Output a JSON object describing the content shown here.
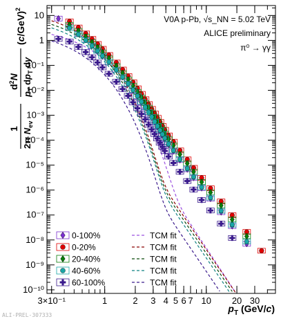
{
  "chart_data": {
    "type": "scatter",
    "x_scale": "log",
    "y_scale": "log",
    "xlim": [
      0.27,
      48
    ],
    "ylim": [
      7.2e-11,
      25
    ],
    "x_ticks": [
      {
        "v": 0.3,
        "label": "3×10⁻¹"
      },
      {
        "v": 1,
        "label": "1"
      },
      {
        "v": 2,
        "label": "2"
      },
      {
        "v": 3,
        "label": "3"
      },
      {
        "v": 4,
        "label": "4"
      },
      {
        "v": 5,
        "label": "5"
      },
      {
        "v": 6,
        "label": "6"
      },
      {
        "v": 7,
        "label": "7"
      },
      {
        "v": 10,
        "label": "10"
      },
      {
        "v": 20,
        "label": "20"
      },
      {
        "v": 30,
        "label": "30"
      }
    ],
    "y_ticks": [
      {
        "v": 10,
        "label": "10"
      },
      {
        "v": 1,
        "label": "1"
      },
      {
        "v": 0.1,
        "label": "10⁻¹"
      },
      {
        "v": 0.01,
        "label": "10⁻²"
      },
      {
        "v": 0.001,
        "label": "10⁻³"
      },
      {
        "v": 0.0001,
        "label": "10⁻⁴"
      },
      {
        "v": 1e-05,
        "label": "10⁻⁵"
      },
      {
        "v": 1e-06,
        "label": "10⁻⁶"
      },
      {
        "v": 1e-07,
        "label": "10⁻⁷"
      },
      {
        "v": 1e-08,
        "label": "10⁻⁸"
      },
      {
        "v": 1e-09,
        "label": "10⁻⁹"
      },
      {
        "v": 1e-10,
        "label": "10⁻¹⁰"
      }
    ],
    "xlabel": "p_T (GeV/c)",
    "ylabel": "1/(2π N_ev) d²N/(p_T dp_T dy) (c/GeV)²",
    "annotations": [
      "V0A p-Pb, √s_NN = 5.02 TeV",
      "ALICE preliminary",
      "π⁰ → γγ"
    ],
    "watermark": "ALI-PREL-307333",
    "legend_position": "bottom-left",
    "series": [
      {
        "name": "0-100%",
        "marker": "diamond",
        "color": "#7b2fd0",
        "points": [
          [
            0.35,
            7.5
          ],
          [
            0.45,
            3.6
          ],
          [
            0.55,
            1.85
          ],
          [
            0.65,
            1.05
          ],
          [
            0.75,
            0.62
          ],
          [
            0.85,
            0.38
          ],
          [
            0.95,
            0.24
          ],
          [
            1.1,
            0.135
          ],
          [
            1.3,
            0.067
          ],
          [
            1.5,
            0.034
          ],
          [
            1.7,
            0.018
          ],
          [
            1.9,
            0.0098
          ],
          [
            2.1,
            0.0056
          ],
          [
            2.3,
            0.0033
          ],
          [
            2.5,
            0.002
          ],
          [
            2.7,
            0.00125
          ],
          [
            2.9,
            0.0008
          ],
          [
            3.1,
            0.00052
          ],
          [
            3.3,
            0.00034
          ],
          [
            3.5,
            0.00023
          ],
          [
            3.7,
            0.000158
          ],
          [
            3.9,
            0.00011
          ],
          [
            4.25,
            6.5e-05
          ],
          [
            4.75,
            3.6e-05
          ],
          [
            5.5,
            1.6e-05
          ],
          [
            6.5,
            6.8e-06
          ],
          [
            7.5,
            3.1e-06
          ],
          [
            9,
            1.2e-06
          ],
          [
            11,
            4.5e-07
          ],
          [
            14,
            1.3e-07
          ],
          [
            18,
            3.6e-08
          ],
          [
            25,
            7e-09
          ]
        ]
      },
      {
        "name": "0-20%",
        "marker": "circle",
        "color": "#e00000",
        "points": [
          [
            0.45,
            5.8
          ],
          [
            0.55,
            3.3
          ],
          [
            0.65,
            1.9
          ],
          [
            0.75,
            1.15
          ],
          [
            0.85,
            0.72
          ],
          [
            0.95,
            0.46
          ],
          [
            1.1,
            0.26
          ],
          [
            1.3,
            0.13
          ],
          [
            1.5,
            0.068
          ],
          [
            1.7,
            0.037
          ],
          [
            1.9,
            0.021
          ],
          [
            2.1,
            0.012
          ],
          [
            2.3,
            0.0072
          ],
          [
            2.5,
            0.0044
          ],
          [
            2.7,
            0.0028
          ],
          [
            2.9,
            0.0018
          ],
          [
            3.1,
            0.00118
          ],
          [
            3.3,
            0.00079
          ],
          [
            3.5,
            0.00054
          ],
          [
            3.7,
            0.00037
          ],
          [
            3.9,
            0.00026
          ],
          [
            4.25,
            0.000155
          ],
          [
            4.75,
            8.7e-05
          ],
          [
            5.5,
            3.9e-05
          ],
          [
            6.5,
            1.7e-05
          ],
          [
            7.5,
            7.8e-06
          ],
          [
            9,
            3.1e-06
          ],
          [
            11,
            1.18e-06
          ],
          [
            14,
            3.5e-07
          ],
          [
            18,
            9.8e-08
          ],
          [
            25,
            2.1e-08
          ],
          [
            35,
            3.7e-09
          ]
        ]
      },
      {
        "name": "20-40%",
        "marker": "diamond",
        "color": "#0a7d0a",
        "points": [
          [
            0.45,
            4.2
          ],
          [
            0.55,
            2.4
          ],
          [
            0.65,
            1.4
          ],
          [
            0.75,
            0.84
          ],
          [
            0.85,
            0.52
          ],
          [
            0.95,
            0.33
          ],
          [
            1.1,
            0.19
          ],
          [
            1.3,
            0.094
          ],
          [
            1.5,
            0.049
          ],
          [
            1.7,
            0.027
          ],
          [
            1.9,
            0.015
          ],
          [
            2.1,
            0.0086
          ],
          [
            2.3,
            0.0051
          ],
          [
            2.5,
            0.0031
          ],
          [
            2.7,
            0.002
          ],
          [
            2.9,
            0.00128
          ],
          [
            3.1,
            0.00084
          ],
          [
            3.3,
            0.00056
          ],
          [
            3.5,
            0.00038
          ],
          [
            3.7,
            0.00026
          ],
          [
            3.9,
            0.000183
          ],
          [
            4.25,
            0.000109
          ],
          [
            4.75,
            6.1e-05
          ],
          [
            5.5,
            2.7e-05
          ],
          [
            6.5,
            1.17e-05
          ],
          [
            7.5,
            5.4e-06
          ],
          [
            9,
            2.1e-06
          ],
          [
            11,
            8e-07
          ],
          [
            14,
            2.4e-07
          ],
          [
            18,
            6.6e-08
          ],
          [
            25,
            1.4e-08
          ]
        ]
      },
      {
        "name": "40-60%",
        "marker": "circle",
        "color": "#1aa6a6",
        "points": [
          [
            0.45,
            3.1
          ],
          [
            0.55,
            1.75
          ],
          [
            0.65,
            1.02
          ],
          [
            0.75,
            0.61
          ],
          [
            0.85,
            0.38
          ],
          [
            0.95,
            0.24
          ],
          [
            1.1,
            0.135
          ],
          [
            1.3,
            0.066
          ],
          [
            1.5,
            0.034
          ],
          [
            1.7,
            0.0185
          ],
          [
            1.9,
            0.0103
          ],
          [
            2.1,
            0.0059
          ],
          [
            2.3,
            0.0035
          ],
          [
            2.5,
            0.0021
          ],
          [
            2.7,
            0.00133
          ],
          [
            2.9,
            0.00086
          ],
          [
            3.1,
            0.00056
          ],
          [
            3.3,
            0.00037
          ],
          [
            3.5,
            0.00025
          ],
          [
            3.7,
            0.000172
          ],
          [
            3.9,
            0.00012
          ],
          [
            4.25,
            7.1e-05
          ],
          [
            4.75,
            3.9e-05
          ],
          [
            5.5,
            1.72e-05
          ],
          [
            6.5,
            7.4e-06
          ],
          [
            7.5,
            3.4e-06
          ],
          [
            9,
            1.3e-06
          ],
          [
            11,
            5e-07
          ],
          [
            14,
            1.48e-07
          ],
          [
            18,
            4.1e-08
          ],
          [
            25,
            8.6e-09
          ]
        ]
      },
      {
        "name": "60-100%",
        "marker": "cross",
        "color": "#3a1a8c",
        "points": [
          [
            0.35,
            1.15
          ],
          [
            0.45,
            0.9
          ],
          [
            0.55,
            0.55
          ],
          [
            0.65,
            0.34
          ],
          [
            0.75,
            0.21
          ],
          [
            0.85,
            0.13
          ],
          [
            0.95,
            0.083
          ],
          [
            1.1,
            0.046
          ],
          [
            1.3,
            0.022
          ],
          [
            1.5,
            0.0112
          ],
          [
            1.7,
            0.006
          ],
          [
            1.9,
            0.0033
          ],
          [
            2.1,
            0.0019
          ],
          [
            2.3,
            0.00112
          ],
          [
            2.5,
            0.00068
          ],
          [
            2.7,
            0.00042
          ],
          [
            2.9,
            0.00027
          ],
          [
            3.1,
            0.000176
          ],
          [
            3.3,
            0.000117
          ],
          [
            3.5,
            7.9e-05
          ],
          [
            3.7,
            5.4e-05
          ],
          [
            3.9,
            3.7e-05
          ],
          [
            4.25,
            2.2e-05
          ],
          [
            4.75,
            1.22e-05
          ],
          [
            5.5,
            5.4e-06
          ],
          [
            6.5,
            2.3e-06
          ],
          [
            7.5,
            1.05e-06
          ],
          [
            9,
            4e-07
          ],
          [
            11,
            1.52e-07
          ],
          [
            14,
            4.5e-08
          ],
          [
            18,
            1.2e-08
          ]
        ]
      }
    ],
    "fits": [
      {
        "name": "TCM fit",
        "color": "#9b4fe0",
        "A": 3.0,
        "T": 0.3,
        "B": 0.4,
        "n": 3.1
      },
      {
        "name": "TCM fit",
        "color": "#8b0000",
        "A": 14.0,
        "T": 0.22,
        "B": 1.35,
        "n": 3.0
      },
      {
        "name": "TCM fit",
        "color": "#0b4a0b",
        "A": 10.0,
        "T": 0.22,
        "B": 0.95,
        "n": 3.0
      },
      {
        "name": "TCM fit",
        "color": "#0e8080",
        "A": 7.3,
        "T": 0.22,
        "B": 0.62,
        "n": 3.0
      },
      {
        "name": "TCM fit",
        "color": "#3a1a8c",
        "A": 2.2,
        "T": 0.22,
        "B": 0.18,
        "n": 3.0
      }
    ]
  }
}
